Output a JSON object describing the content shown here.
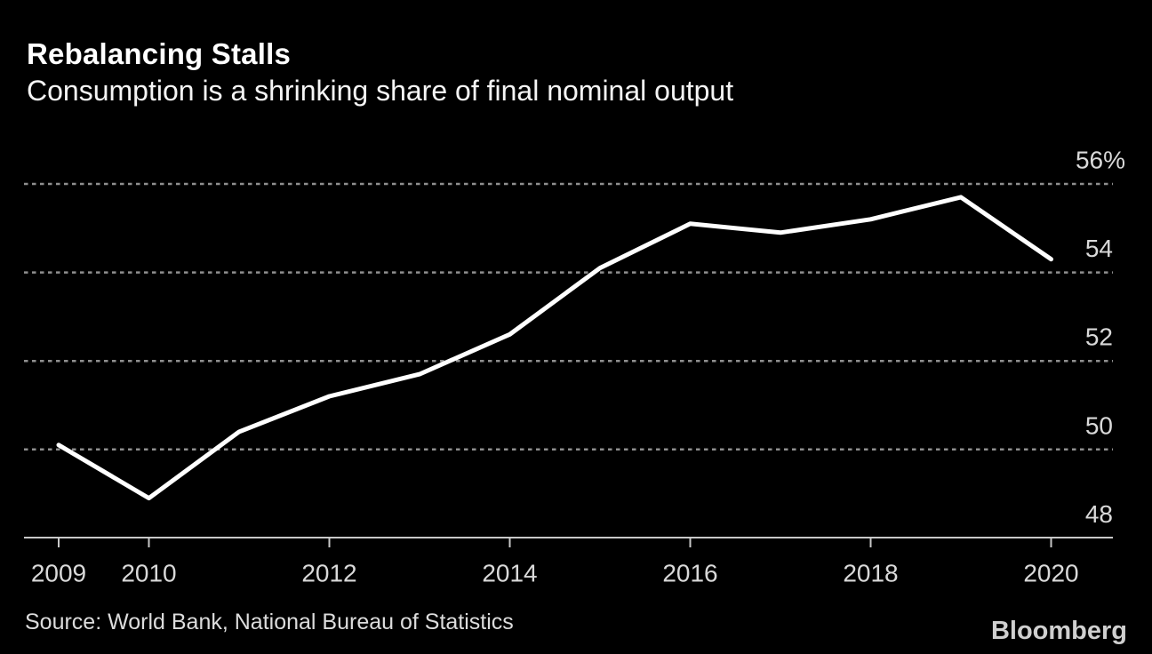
{
  "header": {
    "title": "Rebalancing Stalls",
    "subtitle": "Consumption is a shrinking share of final nominal output"
  },
  "footer": {
    "source": "Source: World Bank, National Bureau of Statistics",
    "brand": "Bloomberg"
  },
  "colors": {
    "background": "#000000",
    "line": "#ffffff",
    "gridline": "#8f8f8f",
    "axis": "#c8c8c8",
    "tick_label": "#d9d9d9",
    "title_text": "#ffffff"
  },
  "chart_data": {
    "type": "line",
    "title": "Rebalancing Stalls",
    "subtitle": "Consumption is a shrinking share of final nominal output",
    "x": [
      2009,
      2010,
      2011,
      2012,
      2013,
      2014,
      2015,
      2016,
      2017,
      2018,
      2019,
      2020
    ],
    "series": [
      {
        "name": "Consumption share of final nominal output (%)",
        "values": [
          50.1,
          48.9,
          50.4,
          51.2,
          51.7,
          52.6,
          54.1,
          55.1,
          54.9,
          55.2,
          55.7,
          54.3
        ]
      }
    ],
    "unit": "%",
    "xlabel": "",
    "ylabel": "",
    "xlim": [
      2009,
      2020
    ],
    "ylim": [
      48,
      56
    ],
    "xticks": [
      {
        "x": 2009,
        "label": "2009"
      },
      {
        "x": 2010,
        "label": "2010"
      },
      {
        "x": 2012,
        "label": "2012"
      },
      {
        "x": 2014,
        "label": "2014"
      },
      {
        "x": 2016,
        "label": "2016"
      },
      {
        "x": 2018,
        "label": "2018"
      },
      {
        "x": 2020,
        "label": "2020"
      }
    ],
    "yticks": [
      {
        "value": 56,
        "label": "56%",
        "gridline": true
      },
      {
        "value": 54,
        "label": "54",
        "gridline": true
      },
      {
        "value": 52,
        "label": "52",
        "gridline": true
      },
      {
        "value": 50,
        "label": "50",
        "gridline": true
      },
      {
        "value": 48,
        "label": "48",
        "gridline": false
      }
    ],
    "grid": "horizontal-dashed",
    "legend": "none",
    "y_axis_side": "right"
  }
}
